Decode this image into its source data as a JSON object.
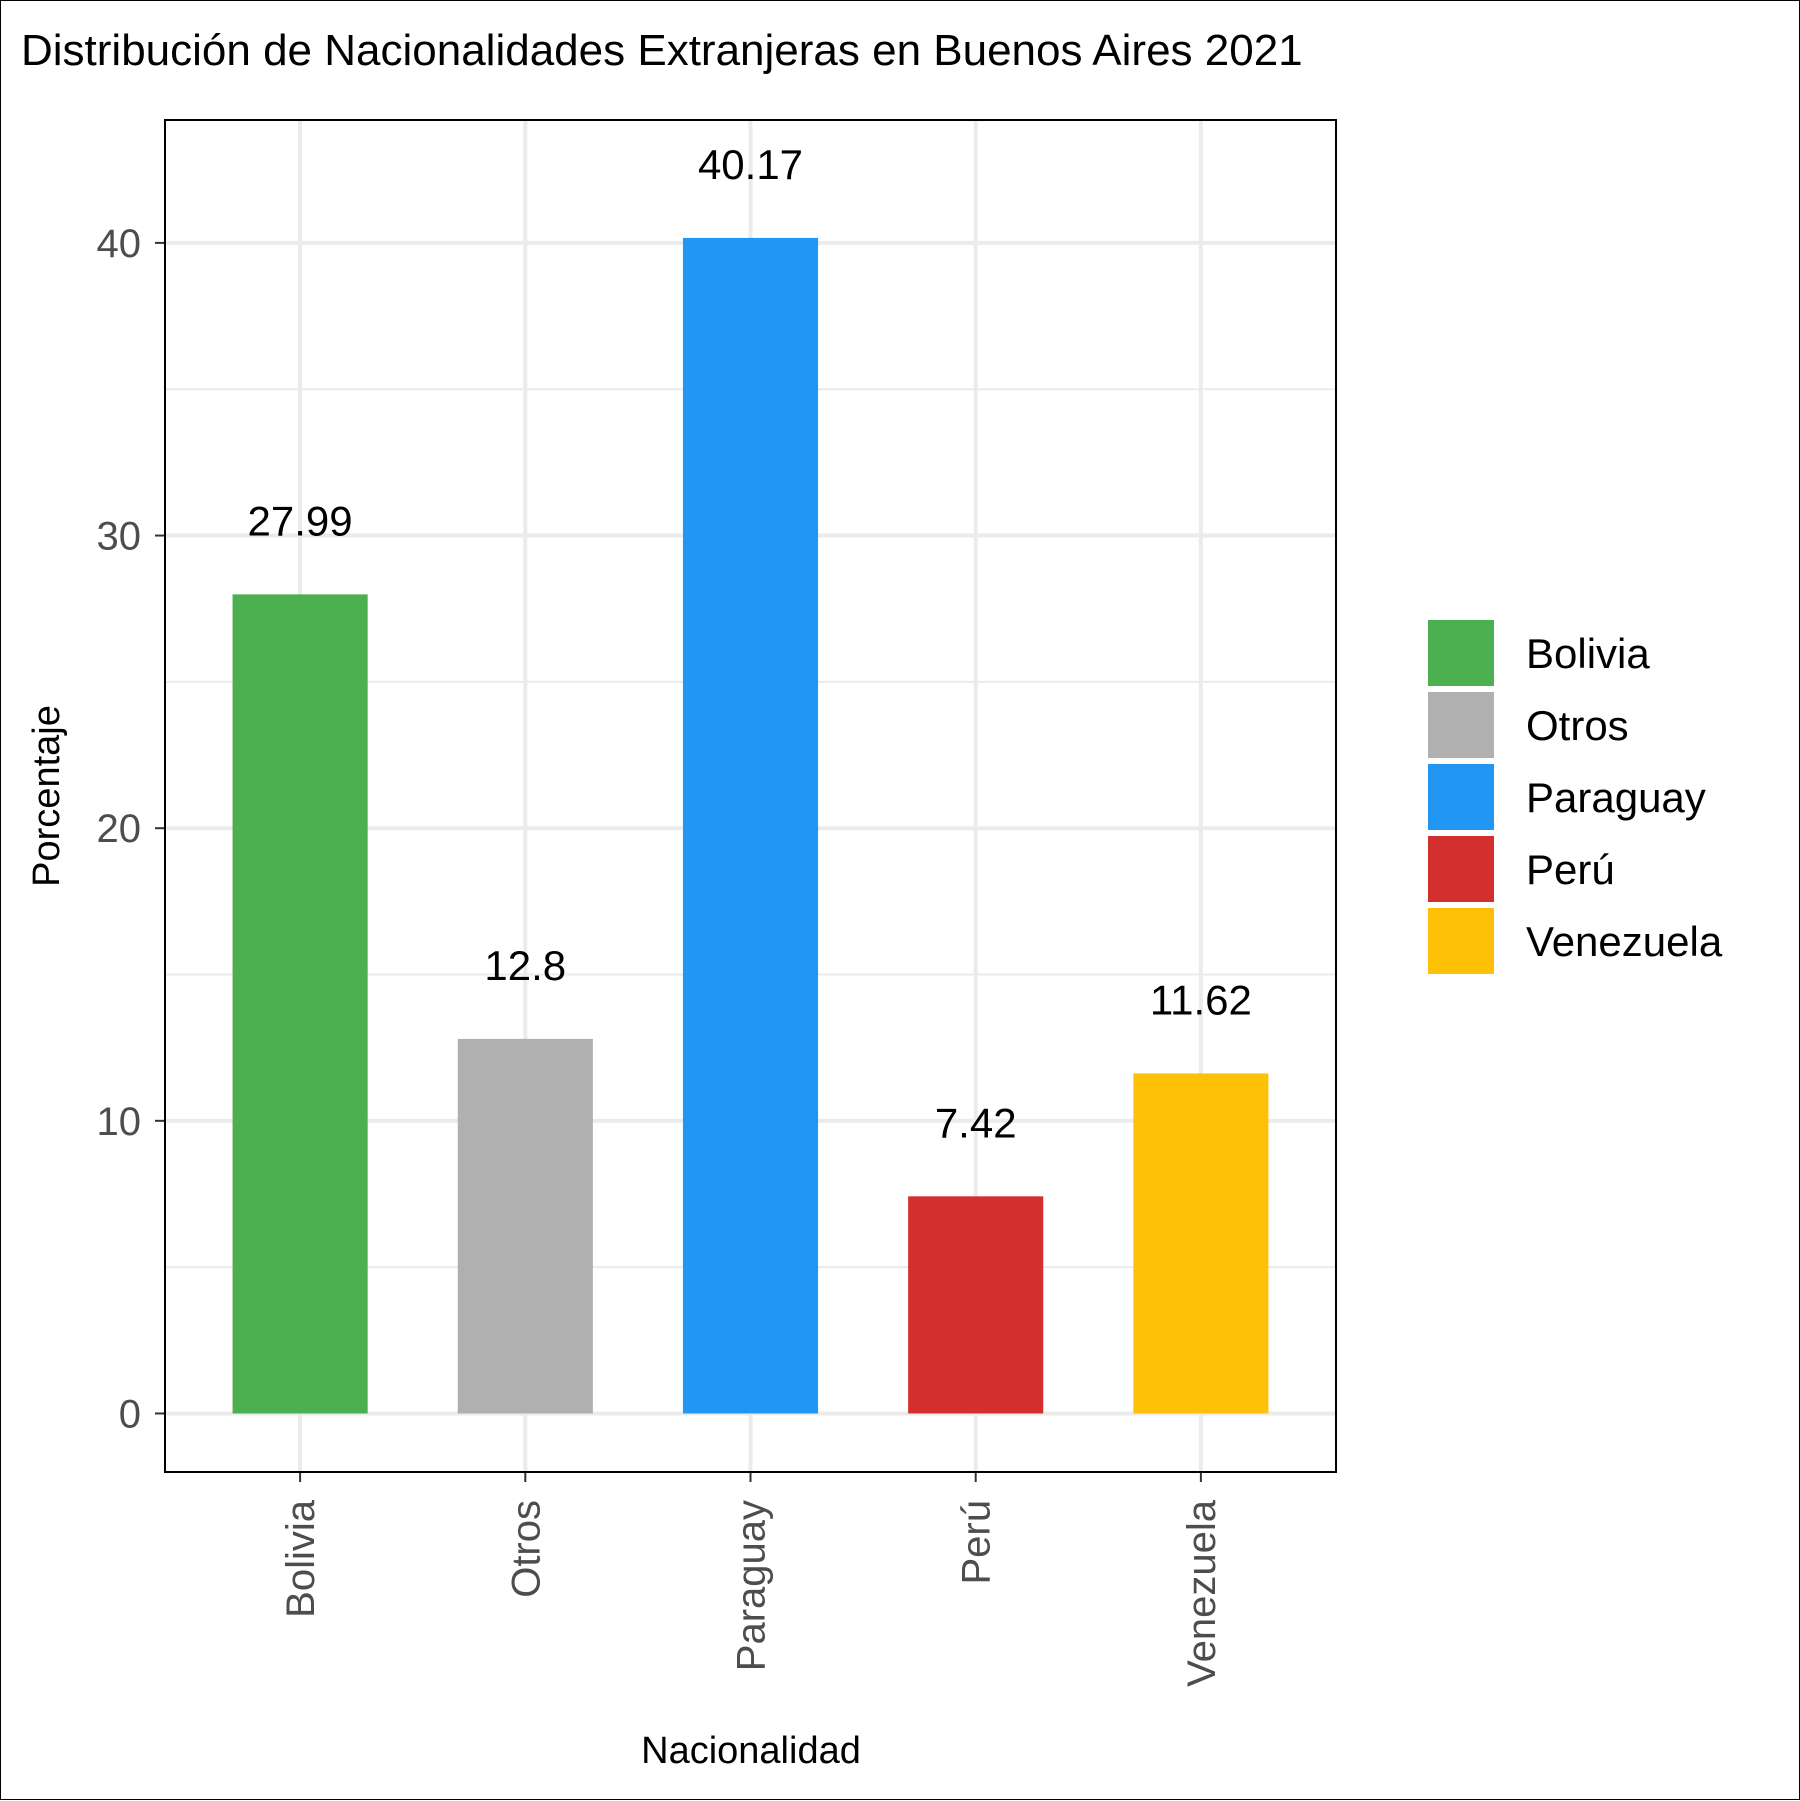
{
  "chart_data": {
    "type": "bar",
    "title": "Distribución de Nacionalidades Extranjeras en Buenos Aires 2021",
    "xlabel": "Nacionalidad",
    "ylabel": "Porcentaje",
    "categories": [
      "Bolivia",
      "Otros",
      "Paraguay",
      "Perú",
      "Venezuela"
    ],
    "values": [
      27.99,
      12.8,
      40.17,
      7.42,
      11.62
    ],
    "data_labels": [
      "27.99",
      "12.8",
      "40.17",
      "7.42",
      "11.62"
    ],
    "colors": [
      "#4caf50",
      "#b0b0b0",
      "#2196f3",
      "#d32f2f",
      "#ffc107"
    ],
    "ylim": [
      -2,
      44.2
    ],
    "yticks": [
      0,
      10,
      20,
      30,
      40
    ],
    "ytick_labels": [
      "0",
      "10",
      "20",
      "30",
      "40"
    ],
    "x_tick_rotation": "vertical",
    "grid": true,
    "legend": {
      "position": "right",
      "entries": [
        "Bolivia",
        "Otros",
        "Paraguay",
        "Perú",
        "Venezuela"
      ]
    }
  }
}
